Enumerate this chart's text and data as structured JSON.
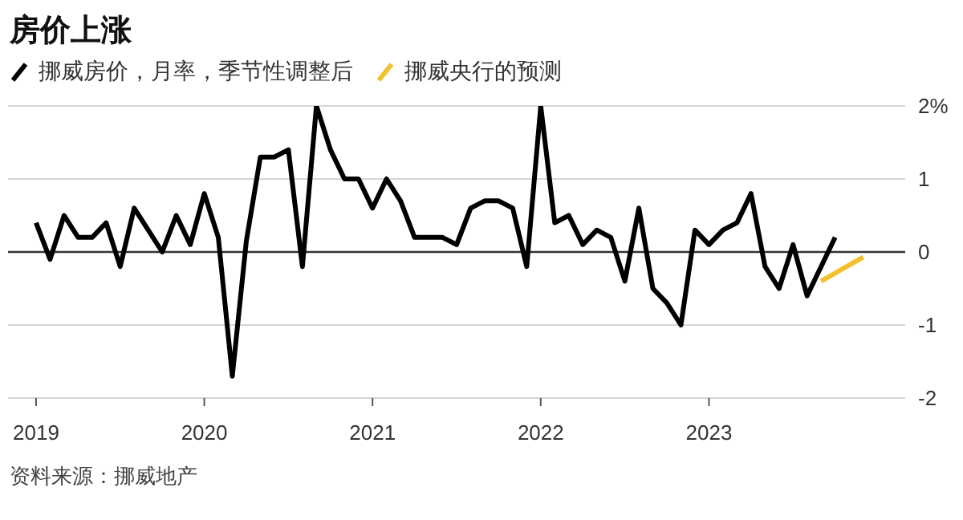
{
  "chart_data": {
    "type": "line",
    "title": "房价上涨",
    "legend": "top left",
    "grid": "y",
    "tick_labels": "xy",
    "marker": "none",
    "line_style": "solid",
    "x": [
      "2019-01",
      "2019-02",
      "2019-03",
      "2019-04",
      "2019-05",
      "2019-06",
      "2019-07",
      "2019-08",
      "2019-09",
      "2019-10",
      "2019-11",
      "2019-12",
      "2020-01",
      "2020-02",
      "2020-03",
      "2020-04",
      "2020-05",
      "2020-06",
      "2020-07",
      "2020-08",
      "2020-09",
      "2020-10",
      "2020-11",
      "2020-12",
      "2021-01",
      "2021-02",
      "2021-03",
      "2021-04",
      "2021-05",
      "2021-06",
      "2021-07",
      "2021-08",
      "2021-09",
      "2021-10",
      "2021-11",
      "2021-12",
      "2022-01",
      "2022-02",
      "2022-03",
      "2022-04",
      "2022-05",
      "2022-06",
      "2022-07",
      "2022-08",
      "2022-09",
      "2022-10",
      "2022-11",
      "2022-12",
      "2023-01",
      "2023-02",
      "2023-03",
      "2023-04",
      "2023-05",
      "2023-06",
      "2023-07",
      "2023-08",
      "2023-09",
      "2023-10"
    ],
    "series": [
      {
        "name": "挪威房价，月率，季节性调整后",
        "color": "#000000",
        "values": [
          0.4,
          -0.1,
          0.5,
          0.2,
          0.2,
          0.4,
          -0.2,
          0.6,
          0.3,
          0.0,
          0.5,
          0.1,
          0.8,
          0.2,
          -1.7,
          0.15,
          1.3,
          1.3,
          1.4,
          -0.2,
          2.0,
          1.4,
          1.0,
          1.0,
          0.6,
          1.0,
          0.7,
          0.2,
          0.2,
          0.2,
          0.1,
          0.6,
          0.7,
          0.7,
          0.6,
          -0.2,
          2.0,
          0.4,
          0.5,
          0.1,
          0.3,
          0.2,
          -0.4,
          0.6,
          -0.5,
          -0.7,
          -1.0,
          0.3,
          0.1,
          0.3,
          0.4,
          0.8,
          -0.2,
          -0.5,
          0.1,
          -0.6,
          -0.2,
          0.2
        ]
      },
      {
        "name": "挪威央行的预测",
        "color": "#f2c12e",
        "x": [
          "2023-09",
          "2023-12"
        ],
        "values": [
          -0.4,
          -0.07
        ]
      }
    ],
    "xlim": [
      "2018-11",
      "2024-03"
    ],
    "xticks": [
      "2019",
      "2020",
      "2021",
      "2022",
      "2023"
    ],
    "ylim": [
      -2,
      2
    ],
    "yticks": [
      {
        "value": 2,
        "label": "2%"
      },
      1,
      0,
      -1,
      -2
    ],
    "ref_lines": [
      {
        "axis": "y",
        "value": 0,
        "color": "#333333"
      }
    ],
    "annotations": [
      "资料来源：挪威地产"
    ]
  }
}
